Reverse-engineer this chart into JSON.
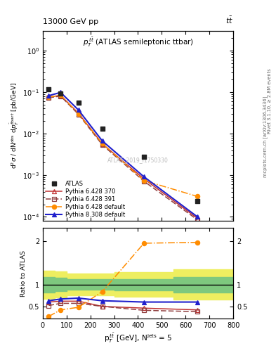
{
  "title_left": "13000 GeV pp",
  "title_right": "tt̅",
  "subtitle": "p$_T^{t\\bar{t}}$ (ATLAS semileptonic ttbar)",
  "watermark": "ATLAS_2019_I1750330",
  "x_atlas": [
    25,
    75,
    150,
    250,
    425,
    650
  ],
  "y_atlas": [
    0.115,
    0.092,
    0.055,
    0.013,
    0.0028,
    0.00024
  ],
  "x_p6_370": [
    25,
    75,
    150,
    250,
    425,
    650
  ],
  "y_p6_370": [
    0.076,
    0.083,
    0.031,
    0.0057,
    0.00082,
    9.2e-05
  ],
  "x_p6_391": [
    25,
    75,
    150,
    250,
    425,
    650
  ],
  "y_p6_391": [
    0.073,
    0.08,
    0.029,
    0.0054,
    0.00072,
    8.5e-05
  ],
  "x_p6_def": [
    25,
    75,
    150,
    250,
    425,
    650
  ],
  "y_p6_def": [
    0.075,
    0.085,
    0.03,
    0.0058,
    0.00075,
    0.00031
  ],
  "x_p8_def": [
    25,
    75,
    150,
    250,
    425,
    650
  ],
  "y_p8_def": [
    0.082,
    0.098,
    0.037,
    0.0067,
    0.00092,
    0.0001
  ],
  "ratio_x": [
    25,
    75,
    150,
    250,
    425,
    650
  ],
  "ratio_p6_370": [
    0.6,
    0.62,
    0.62,
    0.5,
    0.46,
    0.42
  ],
  "ratio_p6_391": [
    0.52,
    0.57,
    0.57,
    0.5,
    0.41,
    0.38
  ],
  "ratio_p6_def": [
    0.27,
    0.42,
    0.48,
    0.84,
    1.95,
    1.97
  ],
  "ratio_p8_def": [
    0.63,
    0.67,
    0.69,
    0.63,
    0.6,
    0.6
  ],
  "color_atlas": "#222222",
  "color_p6_370": "#C03030",
  "color_p6_391": "#904040",
  "color_p6_def": "#FF8C00",
  "color_p8_def": "#2020CC",
  "color_green": "#7EC87E",
  "color_yellow": "#EEEE60",
  "xlim": [
    0,
    800
  ],
  "ylim_main": [
    8e-05,
    3.0
  ],
  "ylim_ratio": [
    0.22,
    2.3
  ],
  "yticks_ratio": [
    0.5,
    1.0,
    2.0
  ]
}
